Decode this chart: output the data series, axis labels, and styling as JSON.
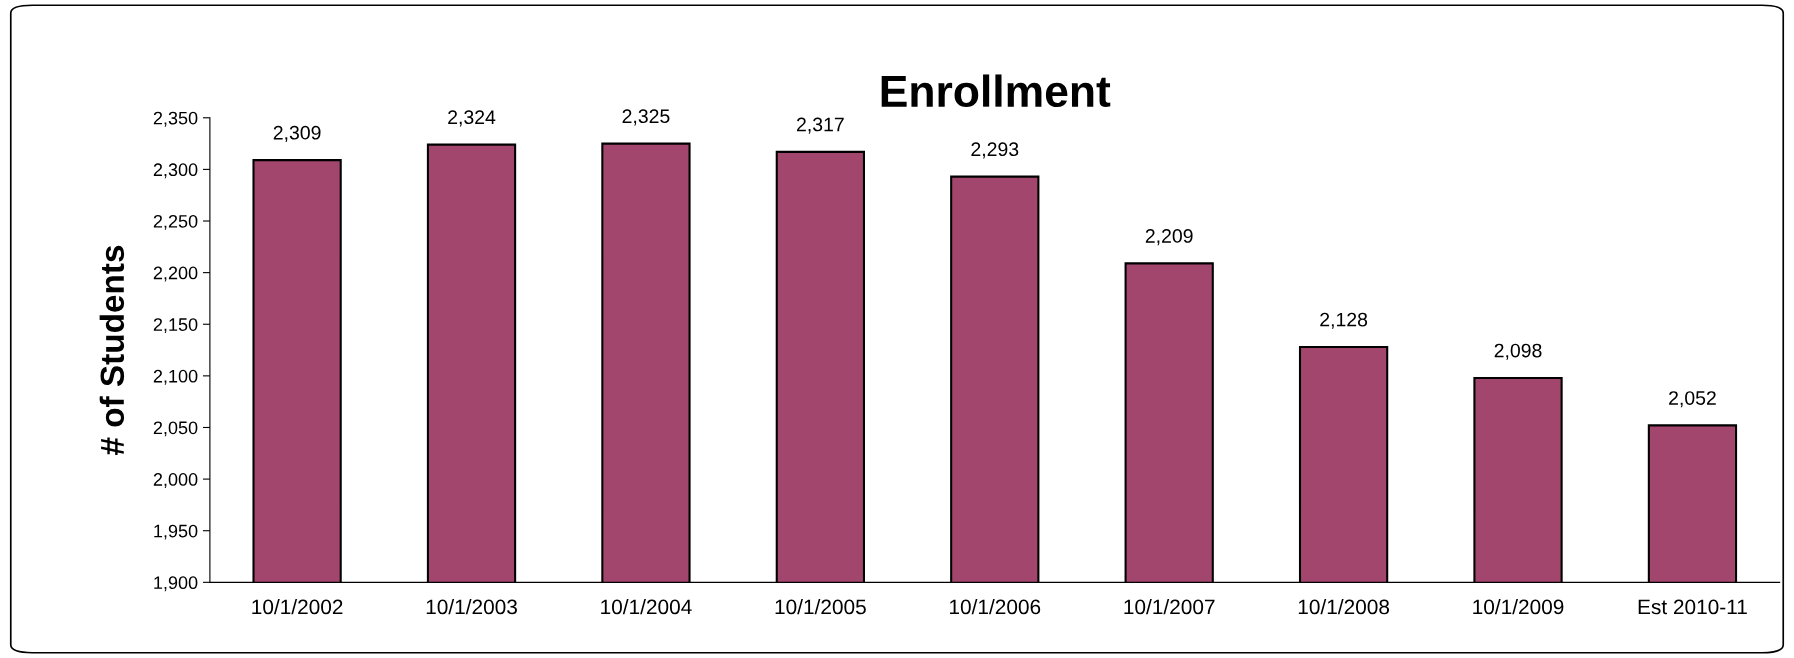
{
  "chart_data": {
    "type": "bar",
    "title": "Enrollment",
    "ylabel": "# of Students",
    "categories": [
      "10/1/2002",
      "10/1/2003",
      "10/1/2004",
      "10/1/2005",
      "10/1/2006",
      "10/1/2007",
      "10/1/2008",
      "10/1/2009",
      "Est 2010-11"
    ],
    "values": [
      2309,
      2324,
      2325,
      2317,
      2293,
      2209,
      2128,
      2098,
      2052
    ],
    "value_labels": [
      "2,309",
      "2,324",
      "2,325",
      "2,317",
      "2,293",
      "2,209",
      "2,128",
      "2,098",
      "2,052"
    ],
    "color": "#a3466e",
    "ylim": [
      1900,
      2350
    ],
    "yticks": [
      {
        "value": 1900,
        "label": "1,900"
      },
      {
        "value": 1950,
        "label": "1,950"
      },
      {
        "value": 2000,
        "label": "2,000"
      },
      {
        "value": 2050,
        "label": "2,050"
      },
      {
        "value": 2100,
        "label": "2,100"
      },
      {
        "value": 2150,
        "label": "2,150"
      },
      {
        "value": 2200,
        "label": "2,200"
      },
      {
        "value": 2250,
        "label": "2,250"
      },
      {
        "value": 2300,
        "label": "2,300"
      },
      {
        "value": 2350,
        "label": "2,350"
      }
    ],
    "grid": false,
    "legend": false
  }
}
